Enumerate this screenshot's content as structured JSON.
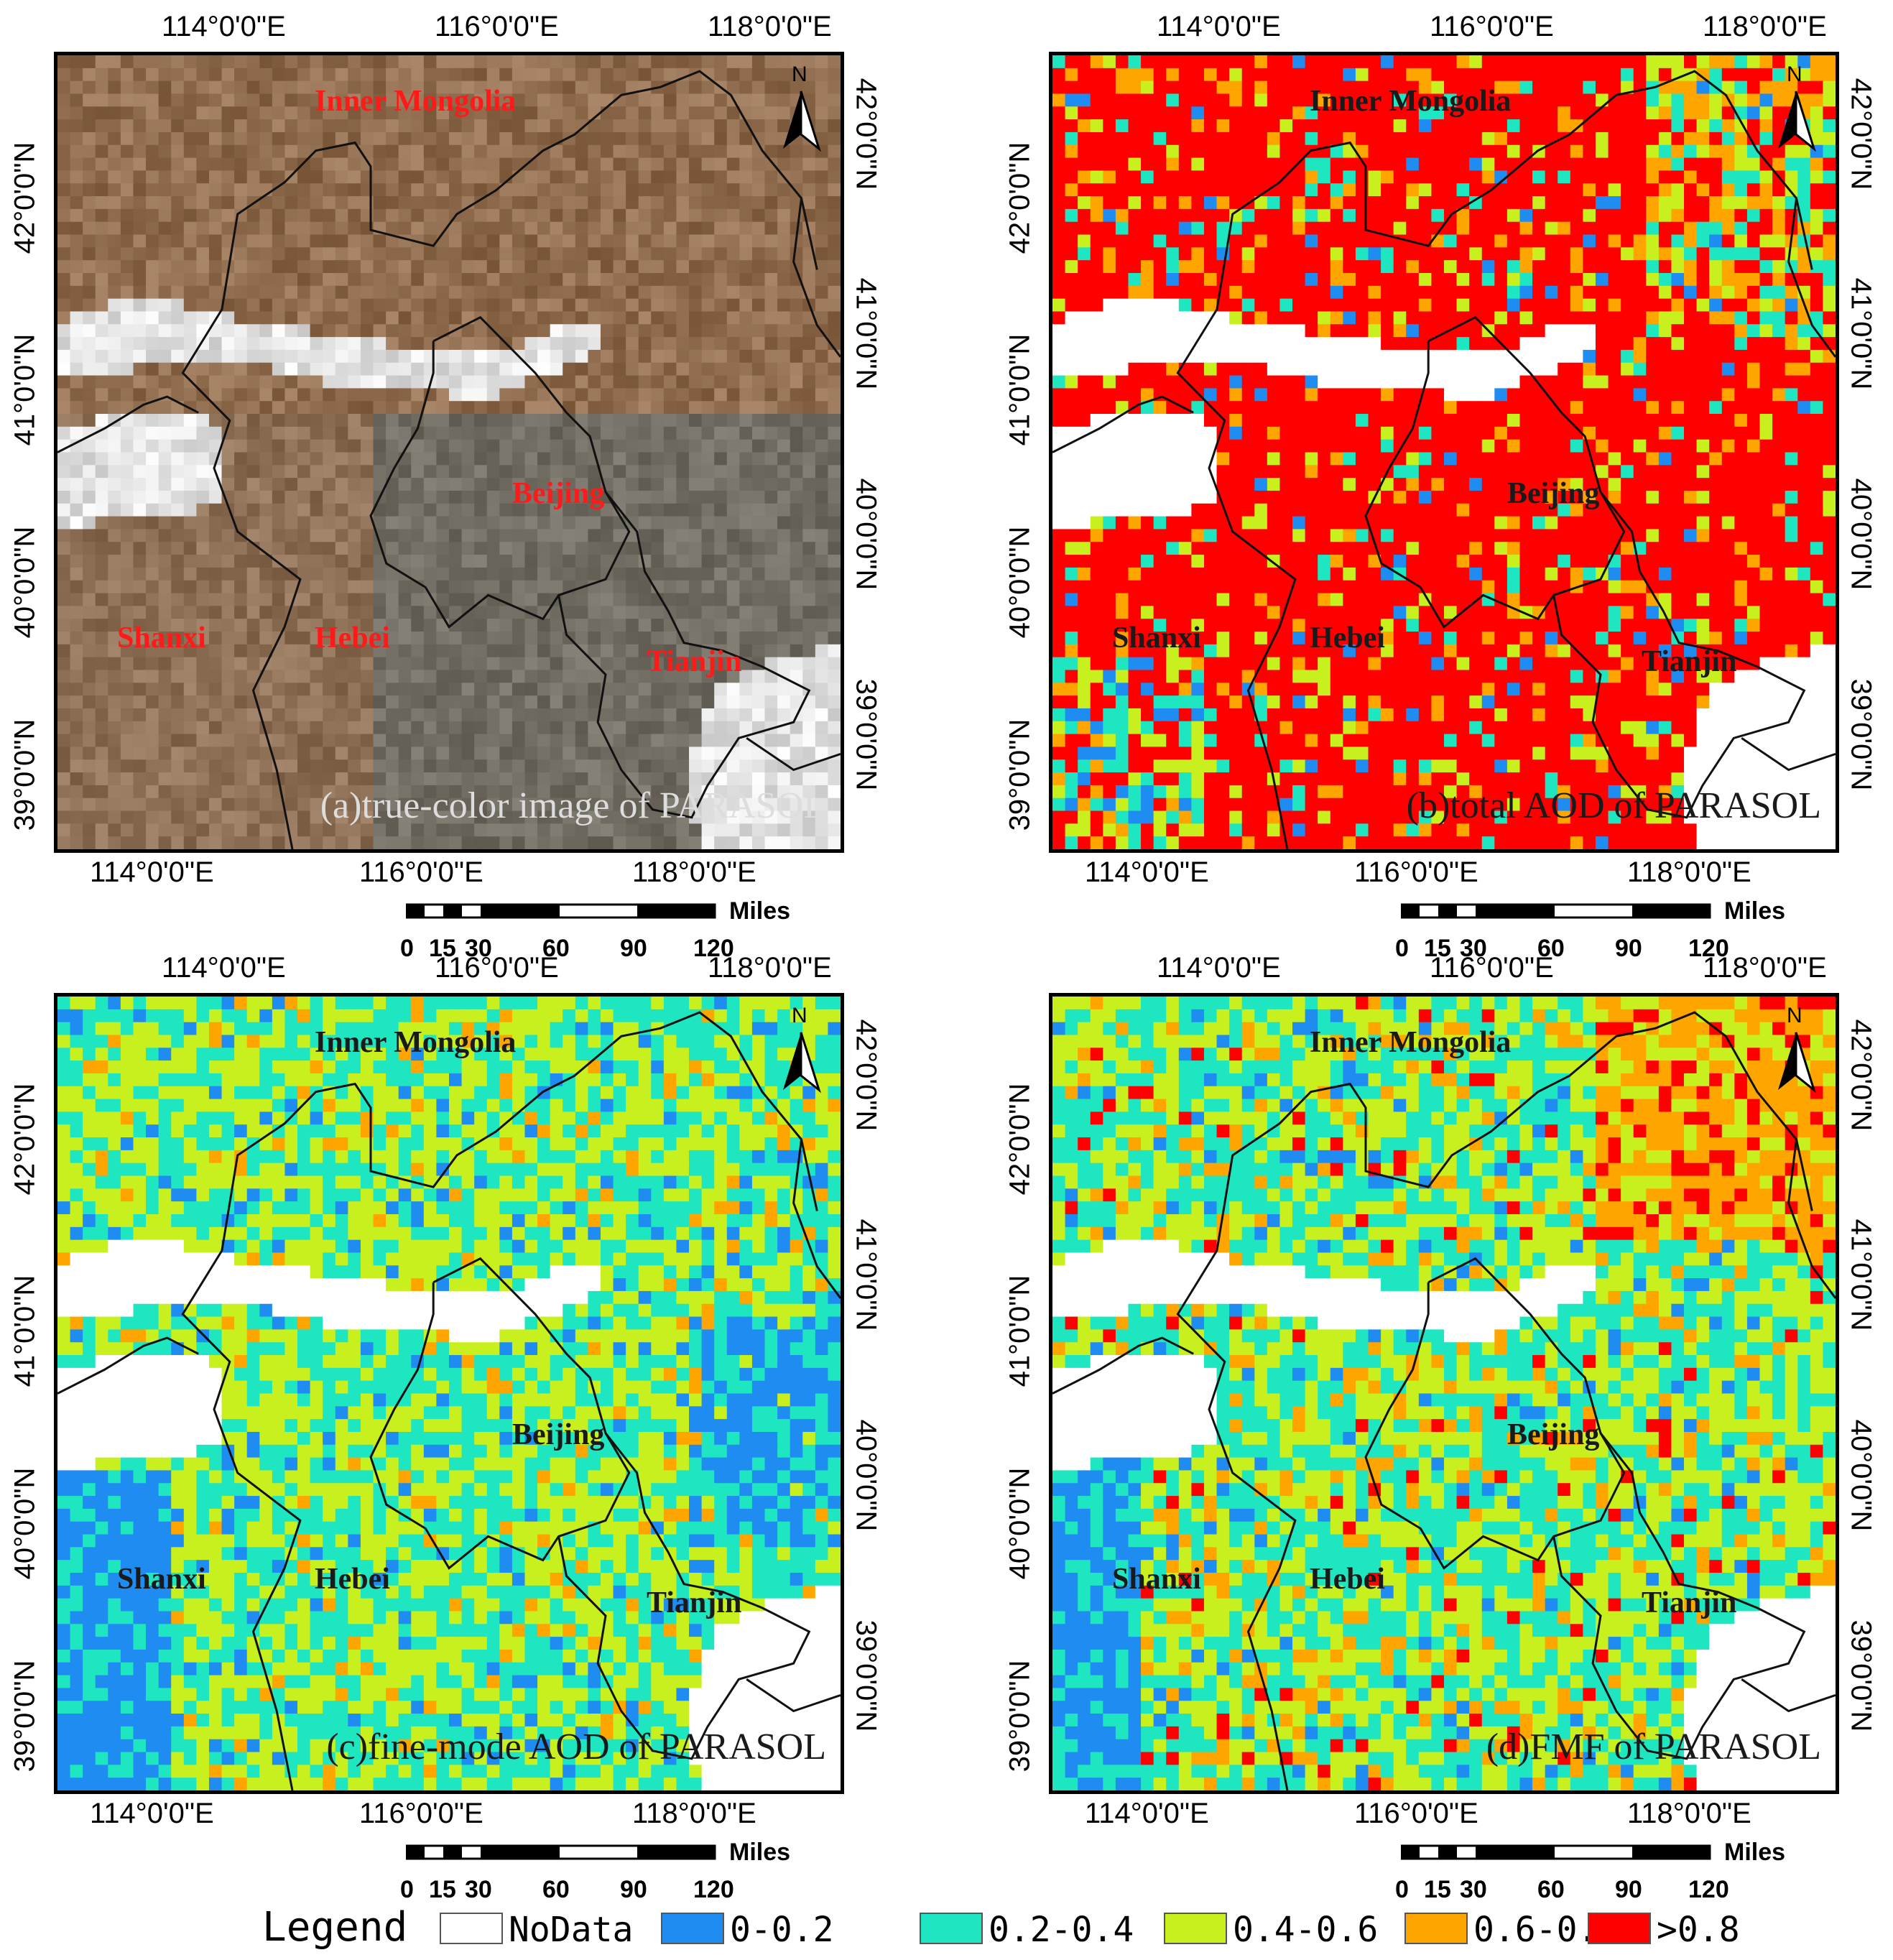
{
  "axes": {
    "lon_labels": [
      "114°0'0\"E",
      "116°0'0\"E",
      "118°0'0\"E"
    ],
    "lat_labels": [
      "42°0'0\"N",
      "41°0'0\"N",
      "40°0'0\"N",
      "39°0'0\"N"
    ]
  },
  "provinces": {
    "inner_mongolia": "Inner Mongolia",
    "beijing": "Beijing",
    "shanxi": "Shanxi",
    "hebei": "Hebei",
    "tianjin": "Tianjin"
  },
  "north_label": "N",
  "scale": {
    "unit": "Miles",
    "ticks": [
      "0",
      "15",
      "30",
      "60",
      "90",
      "120"
    ]
  },
  "panels": [
    {
      "id": "a",
      "caption": "(a)true-color image of PARASOL",
      "province_color": "#ff1a1a",
      "caption_color": "#dddddd"
    },
    {
      "id": "b",
      "caption": "(b)total AOD of PARASOL",
      "province_color": "#1a1a1a",
      "caption_color": "#1a1a1a"
    },
    {
      "id": "c",
      "caption": "(c)fine-mode AOD of PARASOL",
      "province_color": "#1a1a1a",
      "caption_color": "#1a1a1a"
    },
    {
      "id": "d",
      "caption": "(d)FMF of PARASOL",
      "province_color": "#1a1a1a",
      "caption_color": "#1a1a1a"
    }
  ],
  "legend": {
    "title": "Legend",
    "items": [
      {
        "label": "NoData",
        "color": "#ffffff"
      },
      {
        "label": "0-0.2",
        "color": "#1e8cf0"
      },
      {
        "label": "0.2-0.4",
        "color": "#1ee6c0"
      },
      {
        "label": "0.4-0.6",
        "color": "#c8f01e"
      },
      {
        "label": "0.6-0.8",
        "color": "#ffa500"
      },
      {
        "label": ">0.8",
        "color": "#ff0000"
      }
    ]
  }
}
